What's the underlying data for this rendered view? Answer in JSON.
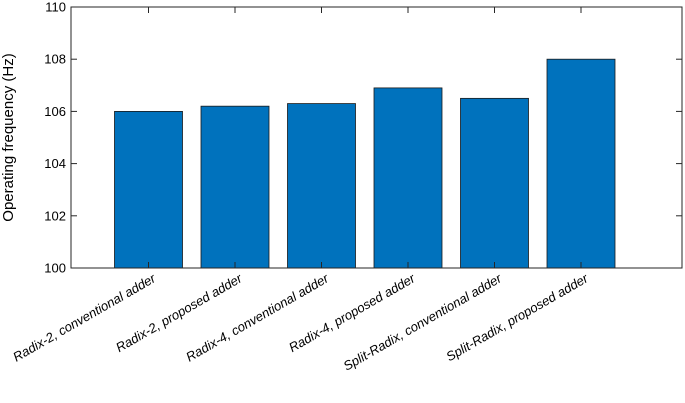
{
  "chart_data": {
    "type": "bar",
    "categories": [
      "Radix-2, conventional adder",
      "Radix-2, proposed adder",
      "Radix-4, conventional adder",
      "Radix-4, proposed adder",
      "Split-Radix, conventional adder",
      "Split-Radix, proposed adder"
    ],
    "values": [
      106.0,
      106.2,
      106.3,
      106.9,
      106.5,
      108.0
    ],
    "title": "",
    "xlabel": "",
    "ylabel": "Operating frequency (Hz)",
    "ylim": [
      100,
      110
    ],
    "yticks": [
      "100",
      "102",
      "104",
      "106",
      "108",
      "110"
    ],
    "bar_color": "#0072bd",
    "grid": false,
    "legend": "none"
  }
}
